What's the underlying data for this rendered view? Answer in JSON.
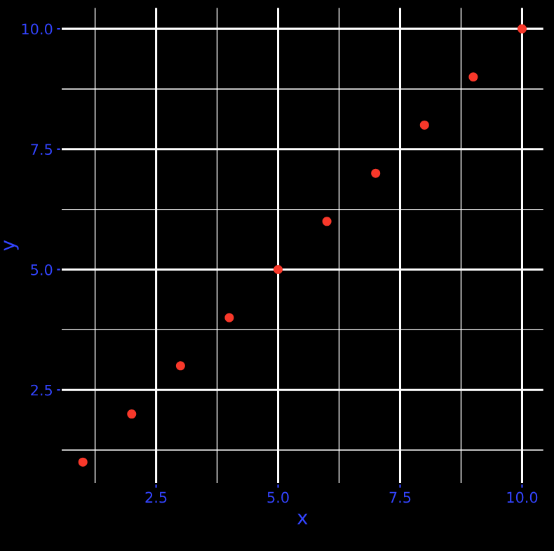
{
  "chart_data": {
    "type": "scatter",
    "xlabel": "x",
    "ylabel": "y",
    "x": [
      1,
      2,
      3,
      4,
      5,
      6,
      7,
      8,
      9,
      10
    ],
    "series": [
      {
        "color": "#f8382a",
        "values": [
          1,
          2,
          3,
          4,
          5,
          6,
          7,
          8,
          9,
          10
        ]
      }
    ],
    "xlim": [
      0.55,
      10.45
    ],
    "ylim": [
      0.55,
      10.45
    ],
    "xticks": [
      {
        "value": 1.25,
        "label": null
      },
      2.5,
      {
        "value": 3.75,
        "label": null
      },
      {
        "value": 5,
        "label": "5.0"
      },
      {
        "value": 6.25,
        "label": null
      },
      7.5,
      {
        "value": 8.75,
        "label": null
      },
      {
        "value": 10,
        "label": "10.0"
      }
    ],
    "yticks": [
      {
        "value": 1.25,
        "label": null
      },
      2.5,
      {
        "value": 3.75,
        "label": null
      },
      {
        "value": 5,
        "label": "5.0"
      },
      {
        "value": 6.25,
        "label": null
      },
      7.5,
      {
        "value": 8.75,
        "label": null
      },
      {
        "value": 10,
        "label": "10.0"
      }
    ],
    "grid": true,
    "marker": "circle"
  }
}
